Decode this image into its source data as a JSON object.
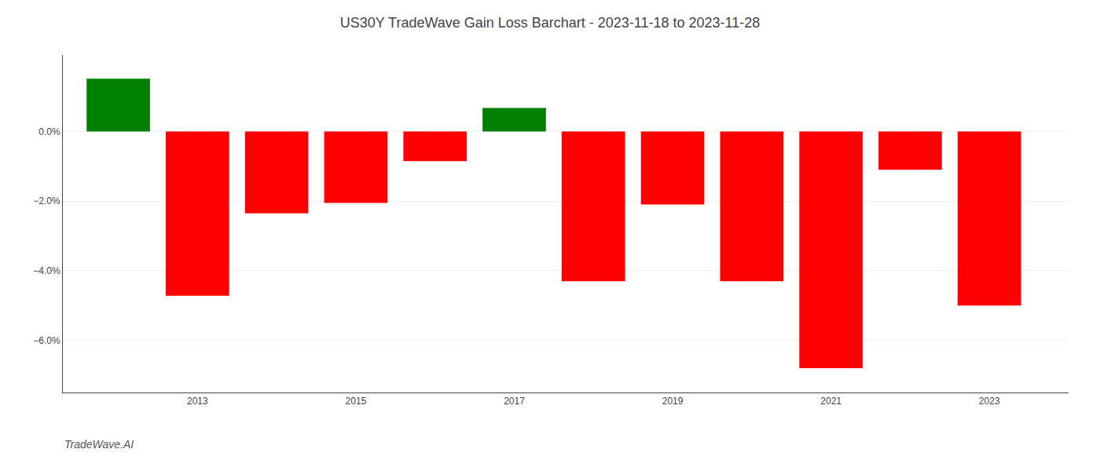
{
  "chart_data": {
    "type": "bar",
    "title": "US30Y TradeWave Gain Loss Barchart - 2023-11-18 to 2023-11-28",
    "annotations": [
      "TradeWave.AI"
    ],
    "x": [
      2012,
      2013,
      2014,
      2015,
      2016,
      2017,
      2018,
      2019,
      2020,
      2021,
      2022,
      2023
    ],
    "values": [
      1.52,
      -4.72,
      -2.35,
      -2.05,
      -0.85,
      0.68,
      -4.3,
      -2.1,
      -4.3,
      -6.8,
      -1.1,
      -5.0
    ],
    "colors": [
      "#008000",
      "#ff0000",
      "#ff0000",
      "#ff0000",
      "#ff0000",
      "#008000",
      "#ff0000",
      "#ff0000",
      "#ff0000",
      "#ff0000",
      "#ff0000",
      "#ff0000"
    ],
    "xlim": [
      2011.3,
      2024.0
    ],
    "xticks": [
      2013,
      2015,
      2017,
      2019,
      2021,
      2023
    ],
    "ylim": [
      -7.5,
      2.2
    ],
    "yticks": [
      {
        "value": 0.0,
        "label": "0.0%"
      },
      {
        "value": -2.0,
        "label": "−2.0%"
      },
      {
        "value": -4.0,
        "label": "−4.0%"
      },
      {
        "value": -6.0,
        "label": "−6.0%"
      }
    ],
    "grid": true
  }
}
